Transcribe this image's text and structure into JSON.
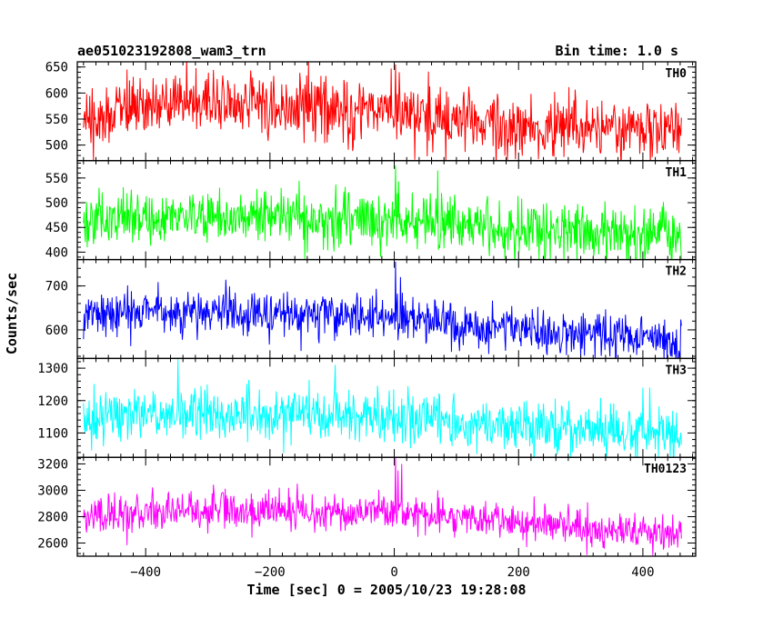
{
  "chart_data": {
    "type": "line",
    "title": "ae051023192808_wam3_trn",
    "bin_time_label": "Bin time: 1.0 s",
    "xlabel": "Time [sec] 0 = 2005/10/23 19:28:08",
    "ylabel": "Counts/sec",
    "xlim": [
      -510,
      485
    ],
    "xticks": [
      -400,
      -200,
      0,
      200,
      400
    ],
    "x_start": -500,
    "x_end": 462,
    "panels": [
      {
        "name": "TH0",
        "color": "#ff0000",
        "ylim": [
          470,
          660
        ],
        "yticks": [
          500,
          550,
          600,
          650
        ],
        "trend": [
          [
            -500,
            555
          ],
          [
            -400,
            578
          ],
          [
            -300,
            583
          ],
          [
            -200,
            572
          ],
          [
            -100,
            572
          ],
          [
            0,
            570
          ],
          [
            100,
            550
          ],
          [
            200,
            540
          ],
          [
            300,
            535
          ],
          [
            400,
            532
          ],
          [
            462,
            530
          ]
        ],
        "noise_sd": 30,
        "spikes": [
          [
            2,
            655
          ],
          [
            8,
            640
          ]
        ]
      },
      {
        "name": "TH1",
        "color": "#00ff00",
        "ylim": [
          385,
          585
        ],
        "yticks": [
          400,
          450,
          500,
          550
        ],
        "trend": [
          [
            -500,
            462
          ],
          [
            -400,
            470
          ],
          [
            -300,
            478
          ],
          [
            -200,
            475
          ],
          [
            -100,
            470
          ],
          [
            0,
            468
          ],
          [
            100,
            458
          ],
          [
            200,
            445
          ],
          [
            300,
            438
          ],
          [
            400,
            433
          ],
          [
            462,
            430
          ]
        ],
        "noise_sd": 28,
        "spikes": [
          [
            2,
            575
          ],
          [
            70,
            565
          ]
        ]
      },
      {
        "name": "TH2",
        "color": "#0000ff",
        "ylim": [
          535,
          760
        ],
        "yticks": [
          600,
          700
        ],
        "trend": [
          [
            -500,
            635
          ],
          [
            -400,
            640
          ],
          [
            -300,
            640
          ],
          [
            -200,
            637
          ],
          [
            -100,
            633
          ],
          [
            0,
            630
          ],
          [
            100,
            610
          ],
          [
            200,
            600
          ],
          [
            300,
            590
          ],
          [
            400,
            582
          ],
          [
            462,
            575
          ]
        ],
        "noise_sd": 25,
        "spikes": [
          [
            2,
            755
          ],
          [
            10,
            720
          ]
        ]
      },
      {
        "name": "TH3",
        "color": "#00ffff",
        "ylim": [
          1025,
          1330
        ],
        "yticks": [
          1100,
          1200,
          1300
        ],
        "trend": [
          [
            -500,
            1150
          ],
          [
            -400,
            1165
          ],
          [
            -300,
            1165
          ],
          [
            -200,
            1160
          ],
          [
            -100,
            1158
          ],
          [
            0,
            1150
          ],
          [
            100,
            1140
          ],
          [
            200,
            1125
          ],
          [
            300,
            1115
          ],
          [
            400,
            1105
          ],
          [
            462,
            1100
          ]
        ],
        "noise_sd": 40,
        "spikes": [
          [
            -348,
            1328
          ],
          [
            -95,
            1310
          ],
          [
            400,
            1240
          ]
        ]
      },
      {
        "name": "TH0123",
        "color": "#ff00ff",
        "ylim": [
          2500,
          3250
        ],
        "yticks": [
          2600,
          2800,
          3000,
          3200
        ],
        "trend": [
          [
            -500,
            2800
          ],
          [
            -400,
            2840
          ],
          [
            -300,
            2855
          ],
          [
            -200,
            2850
          ],
          [
            -100,
            2840
          ],
          [
            -10,
            2830
          ],
          [
            10,
            2830
          ],
          [
            100,
            2790
          ],
          [
            200,
            2760
          ],
          [
            300,
            2715
          ],
          [
            400,
            2680
          ],
          [
            462,
            2650
          ]
        ],
        "noise_sd": 70,
        "spikes": [
          [
            2,
            3250
          ],
          [
            6,
            3150
          ],
          [
            12,
            3200
          ],
          [
            70,
            3000
          ]
        ]
      }
    ]
  }
}
